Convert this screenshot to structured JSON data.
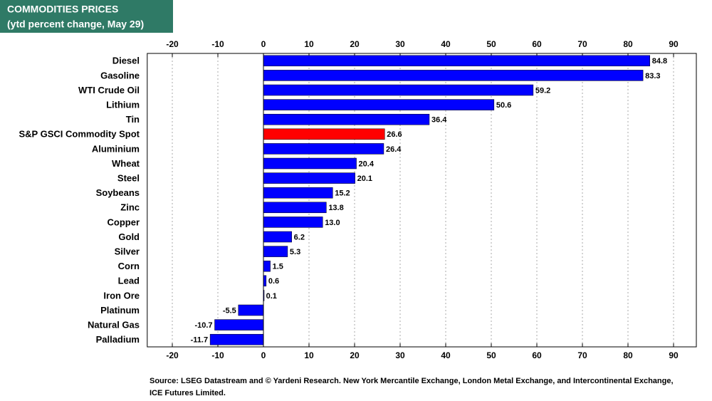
{
  "chart_data": {
    "type": "hbar",
    "title": "COMMODITIES PRICES",
    "subtitle": "(ytd percent change, May 29)",
    "source": "Source: LSEG Datastream and © Yardeni Research. New York Mercantile Exchange, London Metal Exchange, and Intercontinental Exchange,",
    "source_line2": "ICE Futures Limited.",
    "categories": [
      "Diesel",
      "Gasoline",
      "WTI Crude Oil",
      "Lithium",
      "Tin",
      "S&P GSCI Commodity Spot",
      "Aluminium",
      "Wheat",
      "Steel",
      "Soybeans",
      "Zinc",
      "Copper",
      "Gold",
      "Silver",
      "Corn",
      "Lead",
      "Iron Ore",
      "Platinum",
      "Natural Gas",
      "Palladium"
    ],
    "values": [
      84.8,
      83.3,
      59.2,
      50.6,
      36.4,
      26.6,
      26.4,
      20.4,
      20.1,
      15.2,
      13.8,
      13.0,
      6.2,
      5.3,
      1.5,
      0.6,
      0.1,
      -5.5,
      -10.7,
      -11.7
    ],
    "value_labels": [
      "84.8",
      "83.3",
      "59.2",
      "50.6",
      "36.4",
      "26.6",
      "26.4",
      "20.4",
      "20.1",
      "15.2",
      "13.8",
      "13.0",
      "6.2",
      "5.3",
      "1.5",
      "0.6",
      "0.1",
      "-5.5",
      "-10.7",
      "-11.7"
    ],
    "colors": [
      "#0000ff",
      "#0000ff",
      "#0000ff",
      "#0000ff",
      "#0000ff",
      "#ff0000",
      "#0000ff",
      "#0000ff",
      "#0000ff",
      "#0000ff",
      "#0000ff",
      "#0000ff",
      "#0000ff",
      "#0000ff",
      "#0000ff",
      "#0000ff",
      "#0000ff",
      "#0000ff",
      "#0000ff",
      "#0000ff"
    ],
    "xlim": [
      -25.5,
      95
    ],
    "xticks": [
      -20,
      -10,
      0,
      10,
      20,
      30,
      40,
      50,
      60,
      70,
      80,
      90
    ],
    "grid": true
  }
}
